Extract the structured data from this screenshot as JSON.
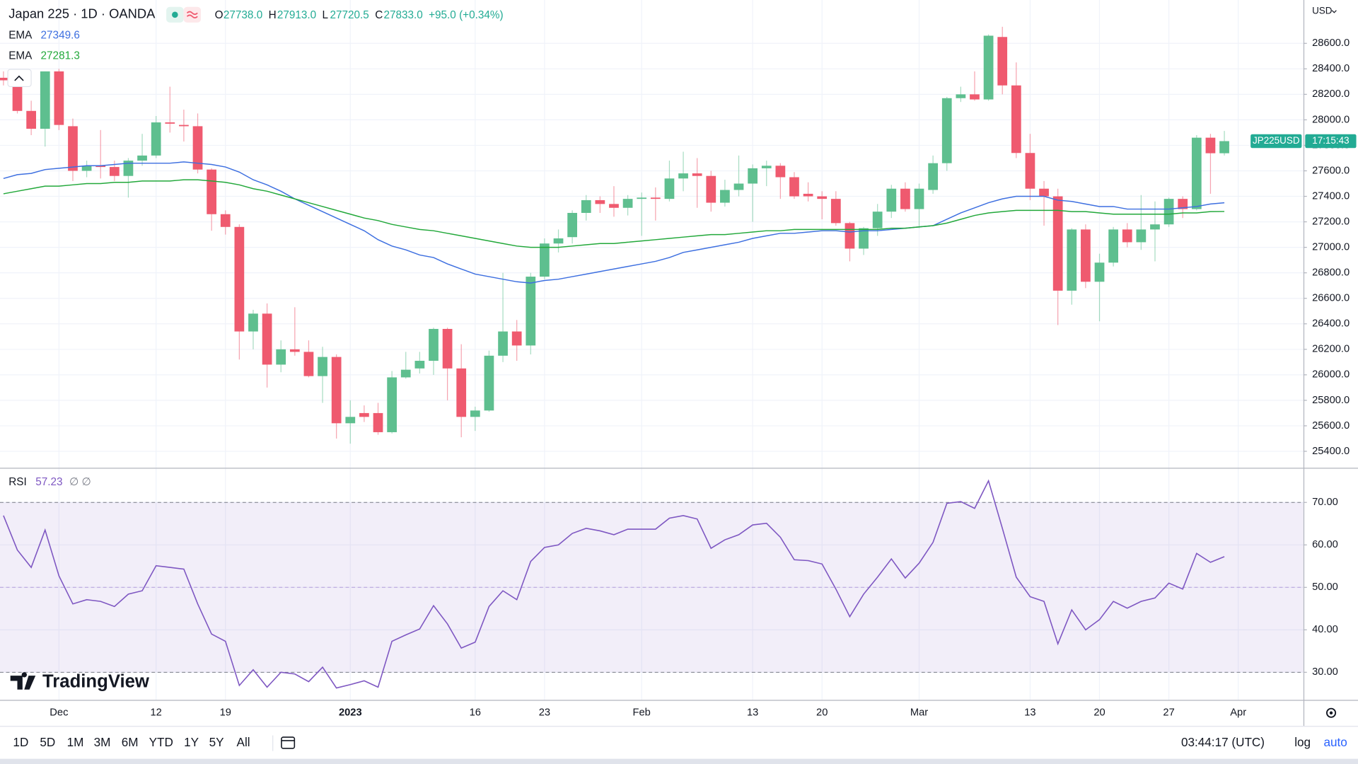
{
  "header": {
    "title": "Japan 225 · 1D · OANDA",
    "ohlc": [
      {
        "label": "O",
        "value": "27738.0"
      },
      {
        "label": "H",
        "value": "27913.0"
      },
      {
        "label": "L",
        "value": "27720.5"
      },
      {
        "label": "C",
        "value": "27833.0"
      }
    ],
    "change": "+95.0 (+0.34%)",
    "currency": "USD"
  },
  "branding": "TradingView",
  "toolbar": {
    "ranges": [
      "1D",
      "5D",
      "1M",
      "3M",
      "6M",
      "YTD",
      "1Y",
      "5Y",
      "All"
    ],
    "clock": "03:44:17 (UTC)",
    "log": "log",
    "auto": "auto"
  },
  "chart_data": [
    {
      "type": "candlestick",
      "up_color": "#5ebf8f",
      "down_color": "#ef5a6f",
      "xlim": [
        -0.25,
        93.7
      ],
      "xticks": [
        {
          "value": 4,
          "label": "Dec"
        },
        {
          "value": 11,
          "label": "12"
        },
        {
          "value": 16,
          "label": "19"
        },
        {
          "value": 25,
          "label": "2023"
        },
        {
          "value": 34,
          "label": "16"
        },
        {
          "value": 39,
          "label": "23"
        },
        {
          "value": 46,
          "label": "Feb"
        },
        {
          "value": 54,
          "label": "13"
        },
        {
          "value": 59,
          "label": "20"
        },
        {
          "value": 66,
          "label": "Mar"
        },
        {
          "value": 74,
          "label": "13"
        },
        {
          "value": 79,
          "label": "20"
        },
        {
          "value": 84,
          "label": "27"
        },
        {
          "value": 89,
          "label": "Apr"
        }
      ],
      "bold_xtick": "2023",
      "ylim": [
        25271,
        28940
      ],
      "yticks": [
        {
          "value": 25400,
          "label": "25400.0"
        },
        {
          "value": 25600,
          "label": "25600.0"
        },
        {
          "value": 25800,
          "label": "25800.0"
        },
        {
          "value": 26000,
          "label": "26000.0"
        },
        {
          "value": 26200,
          "label": "26200.0"
        },
        {
          "value": 26400,
          "label": "26400.0"
        },
        {
          "value": 26600,
          "label": "26600.0"
        },
        {
          "value": 26800,
          "label": "26800.0"
        },
        {
          "value": 27000,
          "label": "27000.0"
        },
        {
          "value": 27200,
          "label": "27200.0"
        },
        {
          "value": 27400,
          "label": "27400.0"
        },
        {
          "value": 27600,
          "label": "27600.0"
        },
        {
          "value": 27800,
          "label": "27800.0"
        },
        {
          "value": 28000,
          "label": "28000.0"
        },
        {
          "value": 28200,
          "label": "28200.0"
        },
        {
          "value": 28400,
          "label": "28400.0"
        },
        {
          "value": 28600,
          "label": "28600.0"
        }
      ],
      "grid": true,
      "open": [
        28330,
        28330,
        28070,
        27930,
        28380,
        27950,
        27600,
        27640,
        27630,
        27560,
        27680,
        27720,
        27980,
        27960,
        27950,
        27610,
        27260,
        27160,
        26340,
        26480,
        26080,
        26200,
        26180,
        25990,
        26140,
        25620,
        25700,
        25700,
        25550,
        25980,
        26050,
        26110,
        26360,
        26050,
        25670,
        25720,
        26150,
        26340,
        26230,
        26770,
        27030,
        27080,
        27270,
        27370,
        27340,
        27310,
        27380,
        27390,
        27380,
        27540,
        27580,
        27560,
        27350,
        27450,
        27500,
        27620,
        27640,
        27550,
        27420,
        27400,
        27380,
        27190,
        26990,
        27150,
        27280,
        27460,
        27300,
        27450,
        27660,
        28170,
        28200,
        28160,
        28650,
        28270,
        27740,
        27460,
        27400,
        26660,
        27140,
        26730,
        26880,
        27140,
        27040,
        27140,
        27180,
        27380,
        27300,
        27860,
        27738
      ],
      "high": [
        28380,
        28350,
        28150,
        28380,
        28400,
        28010,
        27680,
        27920,
        27680,
        27700,
        27890,
        28030,
        28260,
        28080,
        28050,
        27620,
        27290,
        27180,
        26510,
        26560,
        26270,
        26530,
        26270,
        26220,
        26160,
        25800,
        25760,
        25780,
        26030,
        26180,
        26180,
        26370,
        26370,
        26240,
        25750,
        26190,
        26800,
        26430,
        26800,
        27070,
        27140,
        27290,
        27410,
        27400,
        27480,
        27410,
        27430,
        27470,
        27680,
        27750,
        27700,
        27600,
        27530,
        27720,
        27650,
        27680,
        27660,
        27590,
        27510,
        27440,
        27440,
        27200,
        27160,
        27340,
        27490,
        27510,
        27500,
        27720,
        28180,
        28260,
        28380,
        28670,
        28730,
        28450,
        27890,
        27520,
        27460,
        27150,
        27180,
        26950,
        27160,
        27190,
        27410,
        27360,
        27390,
        27400,
        27880,
        27890,
        27913
      ],
      "low": [
        28270,
        28050,
        27880,
        27790,
        27920,
        27520,
        27550,
        27540,
        27520,
        27390,
        27640,
        27700,
        27900,
        27830,
        27580,
        27130,
        27100,
        26120,
        26200,
        25900,
        26020,
        26150,
        25980,
        25780,
        25500,
        25460,
        25630,
        25530,
        25540,
        25970,
        26010,
        26000,
        25800,
        25510,
        25560,
        25710,
        26100,
        26110,
        26160,
        26750,
        26960,
        27030,
        27210,
        27270,
        27240,
        27250,
        27090,
        27210,
        27360,
        27440,
        27310,
        27280,
        27320,
        27400,
        27200,
        27480,
        27380,
        27380,
        27360,
        27220,
        27170,
        26890,
        26940,
        27090,
        27230,
        27280,
        27150,
        27420,
        27600,
        28140,
        28150,
        28150,
        28200,
        27700,
        27370,
        27170,
        26390,
        26550,
        26680,
        26420,
        26850,
        27000,
        26980,
        26890,
        27160,
        27230,
        27290,
        27420,
        27720.5
      ],
      "close": [
        28310,
        28070,
        27930,
        28380,
        27960,
        27600,
        27640,
        27630,
        27560,
        27680,
        27720,
        27980,
        27970,
        27950,
        27610,
        27260,
        27160,
        26340,
        26480,
        26080,
        26200,
        26180,
        25990,
        26140,
        25620,
        25670,
        25670,
        25550,
        25980,
        26040,
        26110,
        26360,
        26050,
        25670,
        25720,
        26150,
        26340,
        26230,
        26770,
        27030,
        27070,
        27270,
        27370,
        27340,
        27310,
        27380,
        27390,
        27380,
        27540,
        27580,
        27560,
        27350,
        27450,
        27500,
        27620,
        27640,
        27550,
        27400,
        27400,
        27380,
        27190,
        26990,
        27150,
        27280,
        27460,
        27300,
        27460,
        27660,
        28170,
        28200,
        28160,
        28660,
        28270,
        27740,
        27460,
        27400,
        26660,
        27140,
        26730,
        26880,
        27140,
        27040,
        27140,
        27180,
        27380,
        27300,
        27860,
        27738,
        27833
      ],
      "series": [
        {
          "name": "EMA",
          "color": "#3d6fe0",
          "legend_value": "27349.6",
          "values": [
            27540,
            27570,
            27580,
            27610,
            27620,
            27630,
            27640,
            27640,
            27650,
            27660,
            27660,
            27660,
            27660,
            27670,
            27660,
            27650,
            27630,
            27590,
            27530,
            27490,
            27440,
            27380,
            27330,
            27280,
            27230,
            27180,
            27130,
            27060,
            27010,
            26980,
            26940,
            26920,
            26870,
            26830,
            26790,
            26770,
            26750,
            26730,
            26720,
            26740,
            26750,
            26770,
            26790,
            26810,
            26830,
            26850,
            26870,
            26890,
            26920,
            26960,
            26980,
            27000,
            27020,
            27040,
            27070,
            27090,
            27110,
            27110,
            27120,
            27130,
            27130,
            27120,
            27130,
            27130,
            27140,
            27150,
            27160,
            27170,
            27220,
            27270,
            27310,
            27350,
            27380,
            27400,
            27400,
            27400,
            27370,
            27360,
            27340,
            27320,
            27320,
            27300,
            27300,
            27300,
            27300,
            27310,
            27320,
            27340,
            27349.6
          ]
        },
        {
          "name": "EMA",
          "color": "#22a83a",
          "legend_value": "27281.3",
          "values": [
            27420,
            27440,
            27460,
            27480,
            27480,
            27490,
            27500,
            27500,
            27510,
            27510,
            27520,
            27520,
            27520,
            27530,
            27530,
            27520,
            27510,
            27490,
            27460,
            27440,
            27410,
            27380,
            27350,
            27320,
            27290,
            27260,
            27230,
            27210,
            27180,
            27160,
            27140,
            27130,
            27110,
            27090,
            27070,
            27050,
            27030,
            27010,
            27000,
            27000,
            27000,
            27010,
            27020,
            27030,
            27030,
            27040,
            27050,
            27060,
            27070,
            27080,
            27090,
            27100,
            27100,
            27110,
            27120,
            27130,
            27130,
            27140,
            27140,
            27140,
            27140,
            27140,
            27140,
            27140,
            27150,
            27150,
            27160,
            27170,
            27190,
            27220,
            27250,
            27270,
            27280,
            27290,
            27290,
            27290,
            27290,
            27280,
            27280,
            27270,
            27260,
            27260,
            27260,
            27260,
            27260,
            27270,
            27270,
            27280,
            27281.3
          ]
        }
      ],
      "price_tag": {
        "symbol": "JP225USD",
        "countdown": "17:15:43",
        "color": "#22ab94"
      }
    },
    {
      "type": "line",
      "title": "RSI",
      "flags": "∅ ∅",
      "ylim": [
        23.5,
        77.96
      ],
      "yticks": [
        {
          "value": 30,
          "label": "30.00"
        },
        {
          "value": 40,
          "label": "40.00"
        },
        {
          "value": 50,
          "label": "50.00"
        },
        {
          "value": 60,
          "label": "60.00"
        },
        {
          "value": 70,
          "label": "70.00"
        }
      ],
      "band": [
        30,
        70
      ],
      "midline": 50,
      "band_color": "#7e57c2",
      "series": [
        {
          "name": "RSI",
          "color": "#7e57c2",
          "legend_value": "57.23",
          "values": [
            66.9,
            58.8,
            54.7,
            63.5,
            52.7,
            46.1,
            47.1,
            46.7,
            45.5,
            48.4,
            49.2,
            55.1,
            54.7,
            54.3,
            46.1,
            39.0,
            37.3,
            26.9,
            30.6,
            26.5,
            30.0,
            29.6,
            27.8,
            31.2,
            26.3,
            27.1,
            28.0,
            26.5,
            37.3,
            38.8,
            40.2,
            45.7,
            41.4,
            35.7,
            37.1,
            45.5,
            49.2,
            47.1,
            56.1,
            59.4,
            60.0,
            62.7,
            63.9,
            63.3,
            62.4,
            63.7,
            63.7,
            63.7,
            66.3,
            66.9,
            66.1,
            59.2,
            61.2,
            62.4,
            64.7,
            65.1,
            61.8,
            56.5,
            56.3,
            55.5,
            49.6,
            43.1,
            48.4,
            52.4,
            56.7,
            52.2,
            55.7,
            60.6,
            69.8,
            70.2,
            68.6,
            75.1,
            63.9,
            52.4,
            47.8,
            46.7,
            36.7,
            44.7,
            40.0,
            42.4,
            46.7,
            45.1,
            46.7,
            47.5,
            51.0,
            49.6,
            58.0,
            55.9,
            57.23
          ]
        }
      ]
    }
  ]
}
